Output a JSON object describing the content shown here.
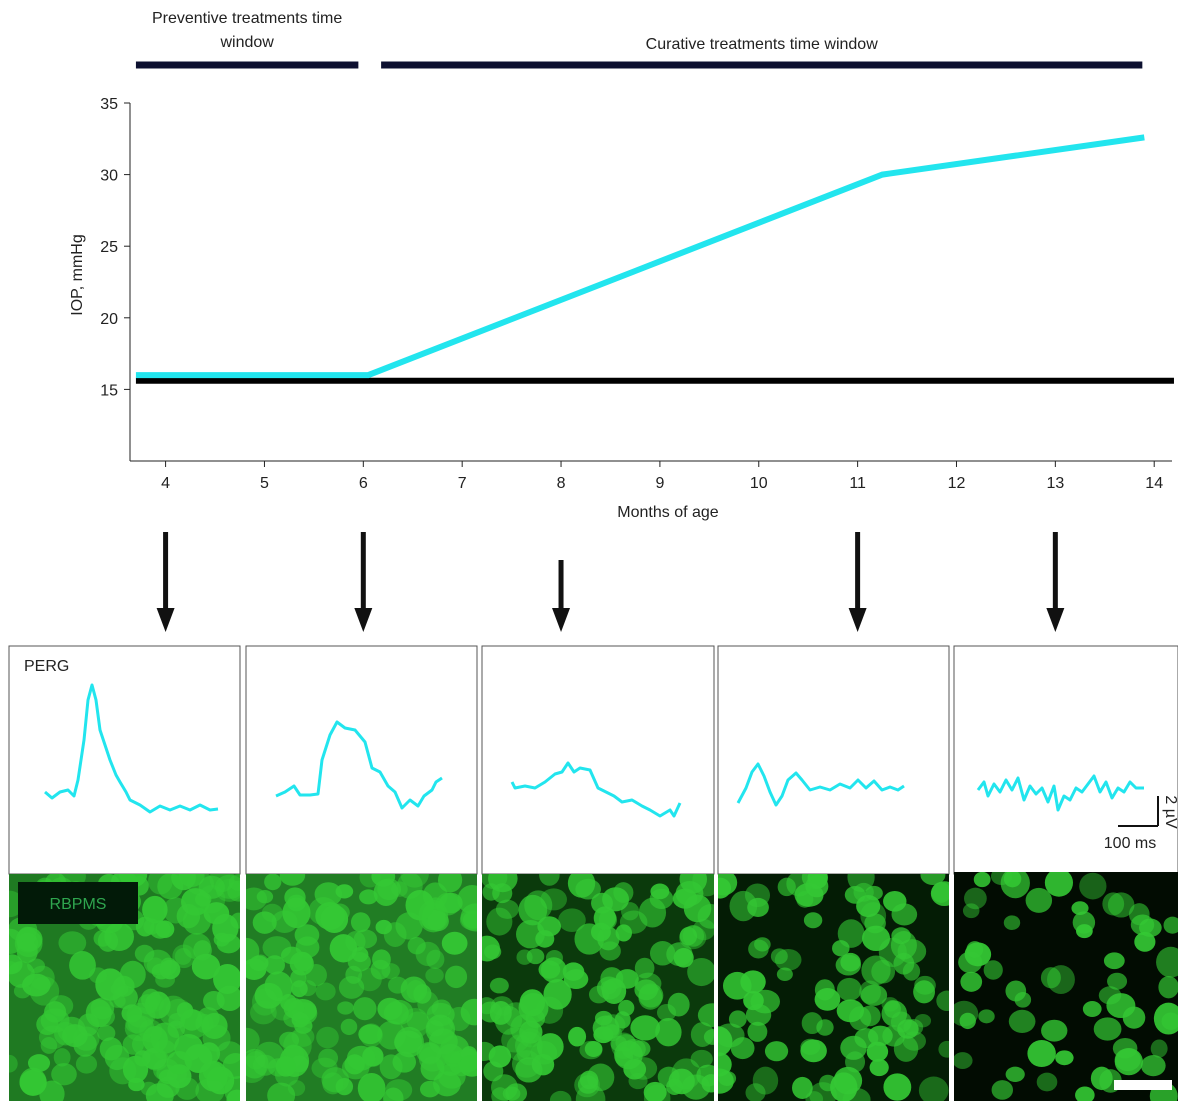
{
  "chart_data": {
    "type": "line",
    "ylabel": "IOP, mmHg",
    "xlabel": "Months of age",
    "xlim": [
      3.64,
      14.18
    ],
    "xticks": [
      4,
      5,
      6,
      7,
      8,
      9,
      10,
      11,
      12,
      13,
      14
    ],
    "ylim": [
      10,
      35
    ],
    "yticks": [
      15,
      20,
      25,
      30,
      35
    ],
    "series": [
      {
        "color": "#22e5ee",
        "x": [
          3.7,
          6.05,
          11.25,
          13.9
        ],
        "values": [
          16,
          16,
          30,
          32.6
        ]
      },
      {
        "color": "#000000",
        "x": [
          3.7,
          14.2
        ],
        "values": [
          15.6,
          15.6
        ]
      }
    ],
    "annotations": [
      {
        "text": "Preventive treatments time window",
        "x": [
          3.7,
          5.95
        ]
      },
      {
        "text": "Curative treatments time window",
        "x": [
          6.18,
          13.88
        ]
      }
    ],
    "markers": [
      4,
      6,
      8,
      11,
      13
    ]
  },
  "panels": {
    "perg_label": "PERG",
    "stain_label": "RBPMS",
    "scale_voltage": "2 µV",
    "scale_time": "100 ms"
  }
}
